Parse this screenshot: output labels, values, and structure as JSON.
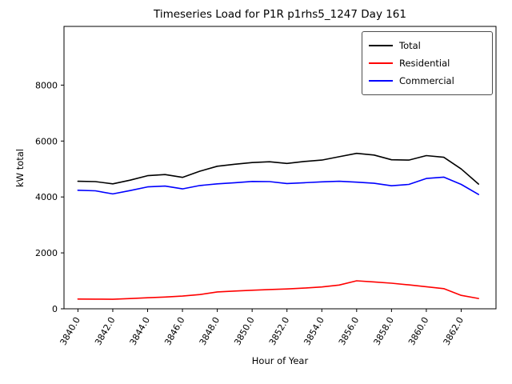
{
  "chart_data": {
    "type": "line",
    "title": "Timeseries Load for P1R p1rhs5_1247  Day 161",
    "xlabel": "Hour of Year",
    "ylabel": "kW total",
    "grid": false,
    "legend_position": "upper right",
    "xlim": [
      3839.2,
      3864.0
    ],
    "ylim": [
      0,
      10100
    ],
    "x": [
      3840,
      3841,
      3842,
      3843,
      3844,
      3845,
      3846,
      3847,
      3848,
      3849,
      3850,
      3851,
      3852,
      3853,
      3854,
      3855,
      3856,
      3857,
      3858,
      3859,
      3860,
      3861,
      3862,
      3863
    ],
    "series": [
      {
        "name": "Total",
        "color": "#000000",
        "values": [
          4560,
          4550,
          4470,
          4600,
          4760,
          4800,
          4700,
          4920,
          5100,
          5170,
          5230,
          5260,
          5200,
          5270,
          5320,
          5440,
          5560,
          5500,
          5330,
          5320,
          5480,
          5420,
          5000,
          4460
        ]
      },
      {
        "name": "Residential",
        "color": "#ff0000",
        "values": [
          350,
          345,
          340,
          365,
          395,
          420,
          455,
          510,
          605,
          635,
          665,
          690,
          710,
          740,
          780,
          850,
          1000,
          960,
          915,
          855,
          790,
          720,
          480,
          370
        ]
      },
      {
        "name": "Commercial",
        "color": "#0000ff",
        "values": [
          4240,
          4220,
          4110,
          4230,
          4360,
          4390,
          4290,
          4410,
          4470,
          4510,
          4555,
          4550,
          4480,
          4510,
          4540,
          4560,
          4530,
          4490,
          4400,
          4450,
          4660,
          4710,
          4450,
          4090
        ]
      }
    ],
    "xticks": {
      "values": [
        3840,
        3842,
        3844,
        3846,
        3848,
        3850,
        3852,
        3854,
        3856,
        3858,
        3860,
        3862
      ],
      "labels": [
        "3840.0",
        "3842.0",
        "3844.0",
        "3846.0",
        "3848.0",
        "3850.0",
        "3852.0",
        "3854.0",
        "3856.0",
        "3858.0",
        "3860.0",
        "3862.0"
      ]
    },
    "yticks": {
      "values": [
        0,
        2000,
        4000,
        6000,
        8000
      ],
      "labels": [
        "0",
        "2000",
        "4000",
        "6000",
        "8000"
      ]
    }
  }
}
